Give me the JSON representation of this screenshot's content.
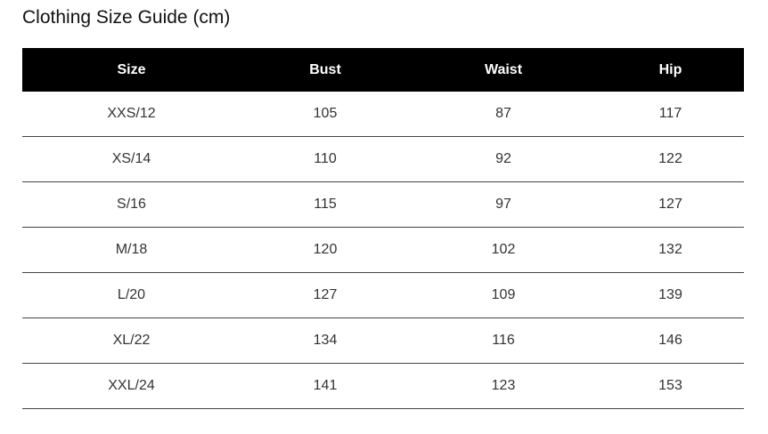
{
  "title": "Clothing Size Guide (cm)",
  "table": {
    "headers": [
      "Size",
      "Bust",
      "Waist",
      "Hip"
    ],
    "rows": [
      [
        "XXS/12",
        "105",
        "87",
        "117"
      ],
      [
        "XS/14",
        "110",
        "92",
        "122"
      ],
      [
        "S/16",
        "115",
        "97",
        "127"
      ],
      [
        "M/18",
        "120",
        "102",
        "132"
      ],
      [
        "L/20",
        "127",
        "109",
        "139"
      ],
      [
        "XL/22",
        "134",
        "116",
        "146"
      ],
      [
        "XXL/24",
        "141",
        "123",
        "153"
      ]
    ]
  }
}
